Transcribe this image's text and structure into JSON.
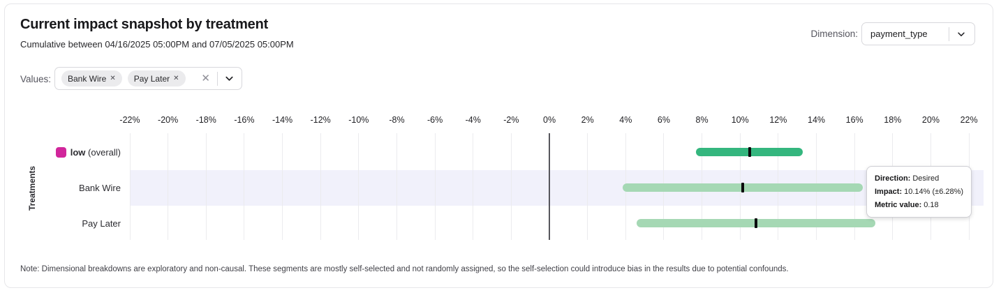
{
  "header": {
    "title": "Current impact snapshot by treatment",
    "subtitle": "Cumulative between 04/16/2025 05:00PM and 07/05/2025 05:00PM",
    "dimension_label": "Dimension:",
    "dimension_value": "payment_type"
  },
  "filters": {
    "values_label": "Values:",
    "chips": [
      {
        "label": "Bank Wire"
      },
      {
        "label": "Pay Later"
      }
    ]
  },
  "icons": {
    "chip_remove_glyph": "✕",
    "clear_glyph": "✕"
  },
  "chart_data": {
    "type": "bar",
    "orientation": "horizontal",
    "ylabel": "Treatments",
    "x_unit": "%",
    "xlim": [
      -22,
      22
    ],
    "x_ticks": [
      -22,
      -20,
      -18,
      -16,
      -14,
      -12,
      -10,
      -8,
      -6,
      -4,
      -2,
      0,
      2,
      4,
      6,
      8,
      10,
      12,
      14,
      16,
      18,
      20,
      22
    ],
    "x_tick_labels": [
      "-22%",
      "-20%",
      "-18%",
      "-16%",
      "-14%",
      "-12%",
      "-10%",
      "-8%",
      "-6%",
      "-4%",
      "-2%",
      "0%",
      "2%",
      "4%",
      "6%",
      "8%",
      "10%",
      "12%",
      "14%",
      "16%",
      "18%",
      "20%",
      "22%"
    ],
    "grid": true,
    "rows": [
      {
        "label": "low",
        "label_suffix": " (overall)",
        "swatch_color": "#d1269b",
        "bar_color": "#34b67e",
        "impact_pct": 10.49,
        "ci_low_pct": 7.7,
        "ci_high_pct": 13.28,
        "highlighted": false
      },
      {
        "label": "Bank Wire",
        "bar_color": "#a5d8b4",
        "impact_pct": 10.14,
        "margin_pct": 6.28,
        "ci_low_pct": 3.86,
        "ci_high_pct": 16.42,
        "metric_value": 0.18,
        "direction": "Desired",
        "highlighted": true
      },
      {
        "label": "Pay Later",
        "bar_color": "#a5d8b4",
        "impact_pct": 10.82,
        "ci_low_pct": 4.56,
        "ci_high_pct": 17.08,
        "highlighted": false
      }
    ],
    "colors": {
      "gridline": "#ebebee",
      "zero_line": "#56565c",
      "highlight_band": "#f1f1fb",
      "center_tick": "#0c0c0e"
    }
  },
  "tooltip": {
    "rows": [
      {
        "label": "Direction:",
        "value": "Desired"
      },
      {
        "label": "Impact:",
        "value": "10.14% (±6.28%)"
      },
      {
        "label": "Metric value:",
        "value": "0.18"
      }
    ]
  },
  "note": "Note: Dimensional breakdowns are exploratory and non-causal. These segments are mostly self-selected and not randomly assigned, so the self-selection could introduce bias in the results due to potential confounds."
}
